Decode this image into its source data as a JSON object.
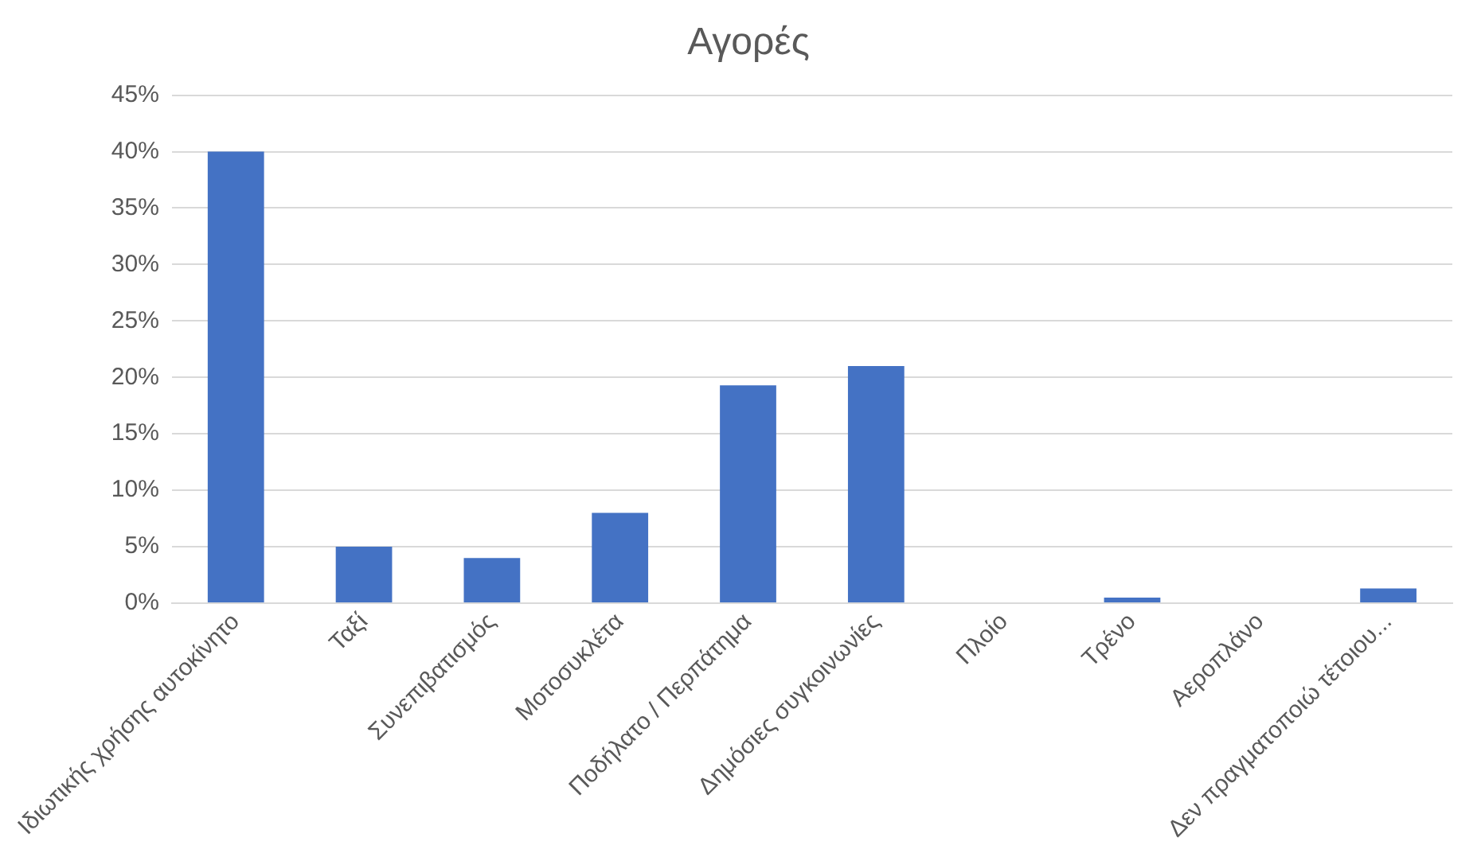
{
  "chart_data": {
    "type": "bar",
    "title": "Αγορές",
    "categories": [
      "Ιδιωτικής χρήσης αυτοκίνητο",
      "Ταξί",
      "Συνεπιβατισμός",
      "Μοτοσυκλέτα",
      "Ποδήλατο / Περπάτημα",
      "Δημόσιες συγκοινωνίες",
      "Πλοίο",
      "Τρένο",
      "Αεροπλάνο",
      "Δεν πραγματοποιώ τέτοιου..."
    ],
    "values": [
      40,
      5,
      4,
      8,
      19.3,
      21,
      0,
      0.5,
      0,
      1.3
    ],
    "color": "#4472c4",
    "ylim": [
      0,
      45
    ],
    "yticks": [
      {
        "value": 0,
        "label": "0%"
      },
      {
        "value": 5,
        "label": "5%"
      },
      {
        "value": 10,
        "label": "10%"
      },
      {
        "value": 15,
        "label": "15%"
      },
      {
        "value": 20,
        "label": "20%"
      },
      {
        "value": 25,
        "label": "25%"
      },
      {
        "value": 30,
        "label": "30%"
      },
      {
        "value": 35,
        "label": "35%"
      },
      {
        "value": 40,
        "label": "40%"
      },
      {
        "value": 45,
        "label": "45%"
      }
    ],
    "grid": "y"
  }
}
